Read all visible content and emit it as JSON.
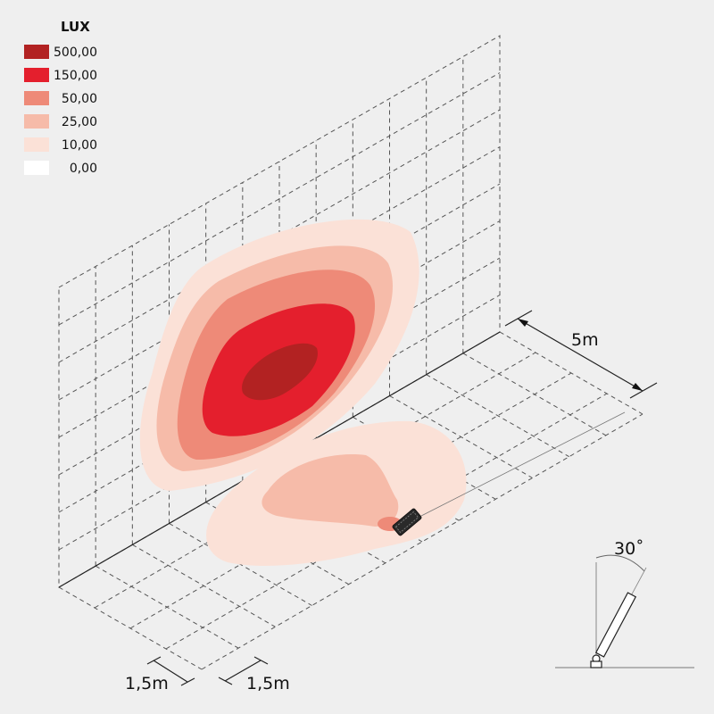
{
  "legend": {
    "title": "LUX",
    "items": [
      {
        "label": "500,00",
        "color": "#b22222"
      },
      {
        "label": "150,00",
        "color": "#e41f2d"
      },
      {
        "label": "50,00",
        "color": "#ee8a78"
      },
      {
        "label": "25,00",
        "color": "#f6bba9"
      },
      {
        "label": "10,00",
        "color": "#fbe1d7"
      },
      {
        "label": "0,00",
        "color": "#ffffff"
      }
    ]
  },
  "dimensions": {
    "depth": "5m",
    "grid_x": "1,5m",
    "grid_y": "1,5m",
    "tilt_angle": "30˚"
  }
}
